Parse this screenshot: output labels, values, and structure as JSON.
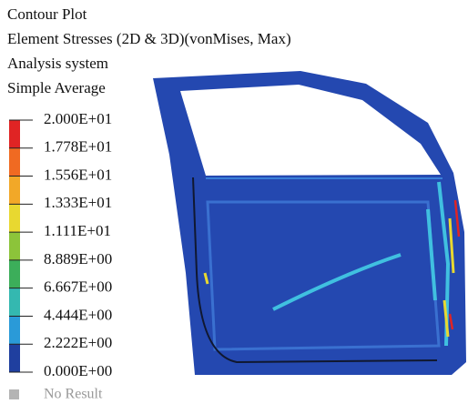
{
  "header": {
    "lines": [
      "Contour Plot",
      "Element Stresses (2D & 3D)(vonMises, Max)",
      "Analysis system",
      "Simple Average"
    ]
  },
  "legend": {
    "levels": [
      "2.000E+01",
      "1.778E+01",
      "1.556E+01",
      "1.333E+01",
      "1.111E+01",
      "8.889E+00",
      "6.667E+00",
      "4.444E+00",
      "2.222E+00",
      "0.000E+00"
    ],
    "colors": [
      "#e02424",
      "#f06a22",
      "#f2a828",
      "#e8d830",
      "#8cc43a",
      "#3cae5a",
      "#34b8b0",
      "#2a9ad8",
      "#1f3f9f"
    ],
    "no_result": "No Result",
    "no_result_color": "#b4b4b4"
  }
}
